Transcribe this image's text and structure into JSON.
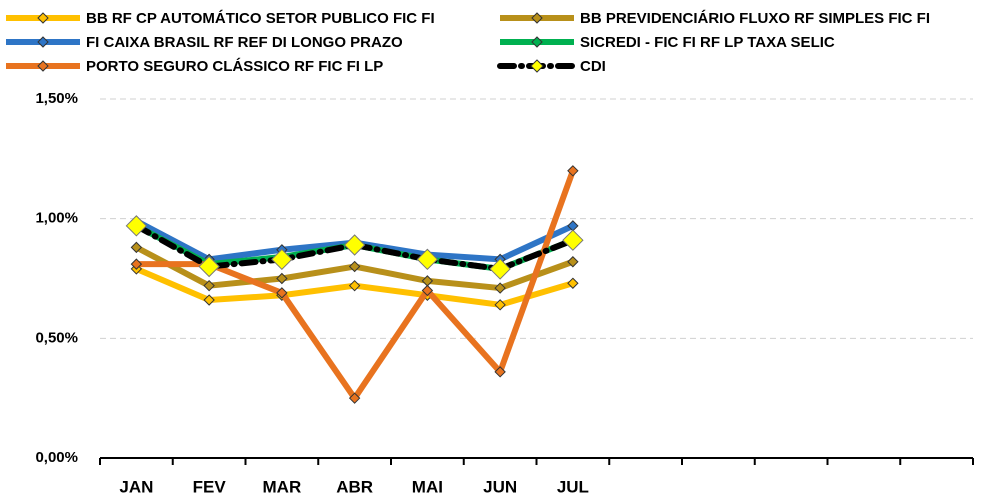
{
  "chart_data": {
    "type": "line",
    "categories": [
      "JAN",
      "FEV",
      "MAR",
      "ABR",
      "MAI",
      "JUN",
      "JUL",
      null,
      null,
      null,
      null,
      null
    ],
    "series": [
      {
        "name": "BB RF CP AUTOMÁTICO SETOR PUBLICO FIC FI",
        "color": "#ffc000",
        "values": [
          0.79,
          0.66,
          0.68,
          0.72,
          0.68,
          0.64,
          0.73,
          null,
          null,
          null,
          null,
          null
        ]
      },
      {
        "name": "BB PREVIDENCIÁRIO FLUXO RF SIMPLES FIC FI",
        "color": "#b8901a",
        "values": [
          0.88,
          0.72,
          0.75,
          0.8,
          0.74,
          0.71,
          0.82,
          null,
          null,
          null,
          null,
          null
        ]
      },
      {
        "name": "FI CAIXA BRASIL RF REF DI LONGO PRAZO",
        "color": "#2e75c6",
        "values": [
          0.99,
          0.83,
          0.87,
          0.9,
          0.85,
          0.83,
          0.97,
          null,
          null,
          null,
          null,
          null
        ]
      },
      {
        "name": "SICREDI - FIC FI RF LP TAXA SELIC",
        "color": "#00b050",
        "values": [
          0.97,
          0.81,
          0.84,
          0.89,
          0.83,
          0.79,
          0.91,
          null,
          null,
          null,
          null,
          null
        ]
      },
      {
        "name": "PORTO SEGURO CLÁSSICO RF FIC FI LP",
        "color": "#e8731f",
        "values": [
          0.81,
          0.81,
          0.69,
          0.25,
          0.7,
          0.36,
          1.2,
          null,
          null,
          null,
          null,
          null
        ]
      },
      {
        "name": "CDI",
        "color": "#000000",
        "marker_color": "#ffff00",
        "dashed": true,
        "values": [
          0.97,
          0.8,
          0.83,
          0.89,
          0.83,
          0.79,
          0.91,
          null,
          null,
          null,
          null,
          null
        ]
      }
    ],
    "ylim": [
      0,
      1.5
    ],
    "yticks": [
      {
        "value": 0,
        "label": "0,00%"
      },
      {
        "value": 0.5,
        "label": "0,50%"
      },
      {
        "value": 1,
        "label": "1,00%"
      },
      {
        "value": 1.5,
        "label": "1,50%"
      }
    ],
    "grid": true,
    "legend": "top"
  }
}
